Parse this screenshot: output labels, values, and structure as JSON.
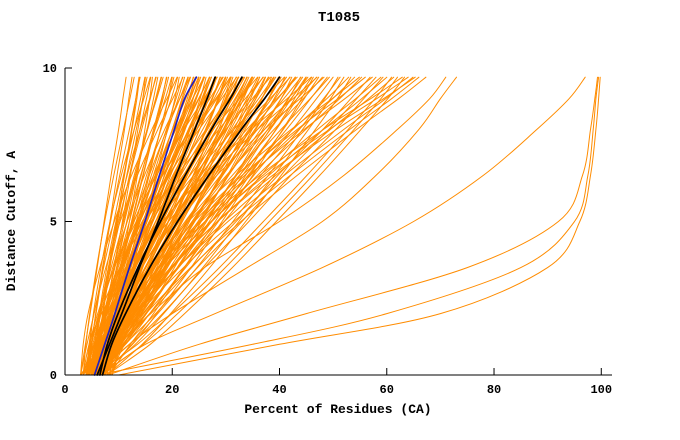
{
  "title": "T1085",
  "chart_data": {
    "type": "line",
    "title": "T1085",
    "xlabel": "Percent of Residues (CA)",
    "ylabel": "Distance Cutoff, A",
    "xlim": [
      0,
      102
    ],
    "ylim": [
      0,
      10
    ],
    "x_ticks": [
      0,
      20,
      40,
      60,
      80,
      100
    ],
    "y_ticks": [
      0,
      5,
      10
    ],
    "grid": false,
    "legend": "none",
    "description": "Cumulative model-accuracy curves: percent of CA residues (x) under each distance cutoff in Angstroms (y). Many predictions (orange), three reference models (black), one highlighted model (blue).",
    "palette": {
      "orange": "#ff8c00",
      "black": "#000000",
      "blue": "#2020c0"
    },
    "axis_color": "#000000",
    "render_hints": {
      "echo_offsets": [
        0,
        1.3,
        -1.1
      ]
    },
    "y_anchors": [
      0,
      1,
      2,
      3.5,
      5,
      6.5,
      8,
      9,
      9.7
    ],
    "series": [
      {
        "color": "orange",
        "x": [
          4,
          4.9,
          5.8,
          7.1,
          8.4,
          9.7,
          11.1,
          11.9,
          12.5
        ]
      },
      {
        "color": "orange",
        "x": [
          4.5,
          5,
          5.7,
          7,
          8.5,
          10.2,
          12,
          13.2,
          14
        ]
      },
      {
        "color": "orange",
        "x": [
          5,
          6.5,
          7.6,
          9.2,
          10.7,
          12.2,
          13.6,
          14.5,
          15
        ]
      },
      {
        "color": "orange",
        "x": [
          4,
          5.2,
          6.5,
          8.3,
          10.2,
          12,
          14,
          15.2,
          16
        ]
      },
      {
        "color": "orange",
        "x": [
          5.5,
          5.8,
          6.4,
          7.8,
          9.5,
          11.6,
          14,
          15.8,
          17
        ]
      },
      {
        "color": "orange",
        "x": [
          6,
          6.6,
          7.6,
          9.2,
          11.1,
          13.2,
          15.4,
          17,
          18
        ]
      },
      {
        "color": "orange",
        "x": [
          4.5,
          6,
          7.5,
          9.7,
          12,
          14.2,
          16.5,
          18,
          19
        ]
      },
      {
        "color": "orange",
        "x": [
          5,
          7.2,
          8.9,
          11.3,
          13.6,
          15.7,
          17.8,
          19.2,
          20
        ]
      },
      {
        "color": "orange",
        "x": [
          6.5,
          7.3,
          8.4,
          10.4,
          12.7,
          15.2,
          17.9,
          19.8,
          21
        ]
      },
      {
        "color": "orange",
        "x": [
          4,
          4.5,
          5.4,
          7.6,
          10.3,
          13.5,
          17.3,
          20.1,
          22
        ]
      },
      {
        "color": "orange",
        "x": [
          5.5,
          7.3,
          9.2,
          11.8,
          14.6,
          17.2,
          20,
          21.8,
          23
        ]
      },
      {
        "color": "orange",
        "x": [
          6,
          7,
          8.3,
          10.8,
          13.7,
          16.8,
          20.1,
          22.5,
          24
        ]
      },
      {
        "color": "orange",
        "x": [
          4.5,
          7.5,
          9.9,
          13.2,
          16.2,
          19.2,
          22,
          23.9,
          25
        ]
      },
      {
        "color": "orange",
        "x": [
          5,
          7.1,
          9.4,
          12.6,
          15.9,
          19.1,
          22.4,
          24.5,
          26
        ]
      },
      {
        "color": "orange",
        "x": [
          7,
          7.5,
          8.6,
          11,
          14,
          17.6,
          21.8,
          24.9,
          27
        ]
      },
      {
        "color": "orange",
        "x": [
          5.5,
          6.7,
          8.4,
          11.5,
          15.1,
          19,
          23.2,
          26.1,
          28
        ]
      },
      {
        "color": "orange",
        "x": [
          6,
          8.3,
          10.8,
          14.3,
          18,
          21.4,
          25.1,
          27.4,
          29
        ]
      },
      {
        "color": "orange",
        "x": [
          4,
          7.8,
          10.8,
          15,
          18.8,
          22.6,
          26.2,
          28.6,
          30
        ]
      },
      {
        "color": "orange",
        "x": [
          6.5,
          7.8,
          9.7,
          13.1,
          16.9,
          21.2,
          25.7,
          28.9,
          31
        ]
      },
      {
        "color": "orange",
        "x": [
          5,
          5.7,
          7.2,
          10.3,
          14.4,
          19.3,
          25,
          29.2,
          32
        ]
      },
      {
        "color": "orange",
        "x": [
          5.5,
          8.3,
          11.3,
          15.4,
          19.8,
          23.9,
          28.3,
          31.1,
          33
        ]
      },
      {
        "color": "orange",
        "x": [
          7,
          8.4,
          10.5,
          14.2,
          18.5,
          23.2,
          28.2,
          31.7,
          34
        ]
      },
      {
        "color": "orange",
        "x": [
          4.5,
          9,
          12.5,
          17.4,
          21.9,
          26.3,
          30.6,
          33.3,
          35
        ]
      },
      {
        "color": "orange",
        "x": [
          6,
          9,
          12.3,
          16.8,
          21.6,
          26.1,
          30.9,
          33.9,
          36
        ]
      },
      {
        "color": "orange",
        "x": [
          5,
          5.9,
          7.6,
          11.3,
          16.1,
          22,
          28.7,
          33.6,
          37
        ]
      },
      {
        "color": "orange",
        "x": [
          6.5,
          8.2,
          10.6,
          14.9,
          19.9,
          25.4,
          31.2,
          35.3,
          38
        ]
      },
      {
        "color": "orange",
        "x": [
          5.5,
          8.9,
          12.5,
          17.6,
          22.9,
          27.9,
          33.3,
          36.7,
          39
        ]
      },
      {
        "color": "orange",
        "x": [
          7.5,
          9.2,
          11.7,
          16.2,
          21.3,
          27,
          33,
          37.2,
          40
        ]
      },
      {
        "color": "orange",
        "x": [
          4,
          9.4,
          13.7,
          19.6,
          25.1,
          30.5,
          35.6,
          39,
          41
        ]
      },
      {
        "color": "orange",
        "x": [
          6,
          7,
          8.9,
          13.1,
          18.5,
          25.1,
          32.6,
          38.2,
          42
        ]
      },
      {
        "color": "orange",
        "x": [
          5,
          8.8,
          13,
          18.7,
          24.8,
          30.5,
          36.5,
          40.3,
          43
        ]
      },
      {
        "color": "orange",
        "x": [
          6.5,
          8.5,
          11.4,
          16.6,
          22.4,
          29,
          35.9,
          40.8,
          44
        ]
      },
      {
        "color": "orange",
        "x": [
          5.5,
          11.3,
          15.8,
          22.2,
          28,
          33.7,
          39.3,
          42.8,
          45
        ]
      },
      {
        "color": "orange",
        "x": [
          7,
          10.9,
          15.2,
          21,
          27.3,
          33.1,
          39.4,
          43.3,
          46
        ]
      },
      {
        "color": "orange",
        "x": [
          4.5,
          5.6,
          7.9,
          12.9,
          19.3,
          27,
          35.9,
          42.5,
          47
        ]
      },
      {
        "color": "orange",
        "x": [
          6,
          8.2,
          11.5,
          17.3,
          23.9,
          31.2,
          39,
          44.4,
          48
        ]
      },
      {
        "color": "orange",
        "x": [
          5,
          9.5,
          14.5,
          21.2,
          28.4,
          35.2,
          42.4,
          46.9,
          50
        ]
      },
      {
        "color": "orange",
        "x": [
          6.5,
          13.1,
          18.4,
          25.7,
          32.4,
          39,
          45.4,
          49.5,
          52
        ]
      },
      {
        "color": "orange",
        "x": [
          5.5,
          8.1,
          11.8,
          18.5,
          26.1,
          34.6,
          43.6,
          49.9,
          54
        ]
      },
      {
        "color": "orange",
        "x": [
          7,
          8.3,
          10.9,
          16.7,
          24.1,
          33,
          43.3,
          50.9,
          56
        ]
      },
      {
        "color": "orange",
        "x": [
          6,
          11.2,
          16.9,
          24.7,
          33,
          40.8,
          49.2,
          54.4,
          58
        ]
      },
      {
        "color": "orange",
        "x": [
          5,
          7.9,
          12.2,
          19.7,
          28.4,
          38,
          48.2,
          55.3,
          60
        ]
      },
      {
        "color": "orange",
        "x": [
          6.5,
          14.6,
          21,
          29.9,
          38.1,
          46.2,
          53.9,
          58.9,
          62
        ]
      },
      {
        "color": "orange",
        "x": [
          7.5,
          9,
          12,
          18.7,
          27.2,
          37.4,
          49.3,
          58.1,
          64
        ]
      },
      {
        "color": "orange",
        "x": [
          6,
          9.2,
          13.8,
          22.1,
          31.5,
          42,
          53.1,
          60.9,
          66
        ]
      },
      {
        "color": "orange",
        "x": [
          5,
          7.2,
          9.6,
          12.9,
          16.4,
          19.7,
          23.3,
          25.5,
          27
        ]
      },
      {
        "color": "orange",
        "x": [
          6,
          9.7,
          12.6,
          16.6,
          20.3,
          23.9,
          27.4,
          29.6,
          31
        ]
      },
      {
        "color": "orange",
        "x": [
          7,
          9.8,
          12.9,
          17.1,
          21.6,
          25.8,
          30.2,
          33,
          35
        ]
      },
      {
        "color": "orange",
        "x": [
          5.5,
          6.1,
          7.4,
          10.3,
          13.9,
          18.2,
          23.3,
          27,
          29.5
        ]
      },
      {
        "color": "orange",
        "x": [
          6.5,
          7.9,
          10,
          13.7,
          18,
          22.7,
          27.7,
          31.2,
          33.5
        ]
      },
      {
        "color": "orange",
        "x": [
          4.5,
          6.5,
          8.7,
          11.7,
          14.9,
          17.9,
          21.1,
          23.1,
          24.5
        ]
      },
      {
        "color": "orange",
        "x": [
          5,
          9.9,
          13.8,
          19.1,
          24.1,
          29,
          33.6,
          36.7,
          38.5
        ]
      },
      {
        "color": "orange",
        "x": [
          6,
          7.1,
          8.6,
          11.4,
          14.5,
          18,
          21.7,
          24.3,
          26
        ]
      },
      {
        "color": "orange",
        "e": 0,
        "x": [
          6,
          35,
          60,
          85,
          95,
          97.5,
          98.5,
          99,
          99.5
        ]
      },
      {
        "color": "orange",
        "e": 0,
        "x": [
          8,
          25,
          45,
          75,
          92,
          96.5,
          98,
          98.8,
          99.3
        ]
      },
      {
        "color": "orange",
        "e": 0,
        "x": [
          10,
          40,
          70,
          90,
          96,
          98,
          99,
          99.5,
          99.8
        ]
      },
      {
        "color": "orange",
        "e": 0,
        "x": [
          7,
          15,
          28,
          48,
          65,
          78,
          88,
          94,
          97
        ]
      },
      {
        "color": "orange",
        "e": 0,
        "x": [
          6,
          12,
          20,
          34,
          48,
          58,
          66,
          70,
          73
        ]
      },
      {
        "color": "orange",
        "e": 0,
        "x": [
          5,
          10,
          16,
          26,
          40,
          52,
          62,
          68,
          71
        ]
      },
      {
        "color": "black",
        "x": [
          6,
          8.3,
          10.6,
          13.9,
          17.4,
          20.7,
          24.2,
          26.5,
          28
        ]
      },
      {
        "color": "black",
        "x": [
          6.5,
          7.9,
          9.9,
          13.6,
          17.8,
          22.4,
          27.3,
          30.8,
          33
        ]
      },
      {
        "color": "black",
        "x": [
          7,
          8.7,
          11.3,
          15.8,
          21,
          26.8,
          32.9,
          37.2,
          40
        ]
      },
      {
        "color": "blue",
        "x": [
          5.5,
          7.4,
          9.3,
          12,
          14.9,
          17.6,
          20.4,
          22.3,
          24.5
        ]
      }
    ]
  }
}
